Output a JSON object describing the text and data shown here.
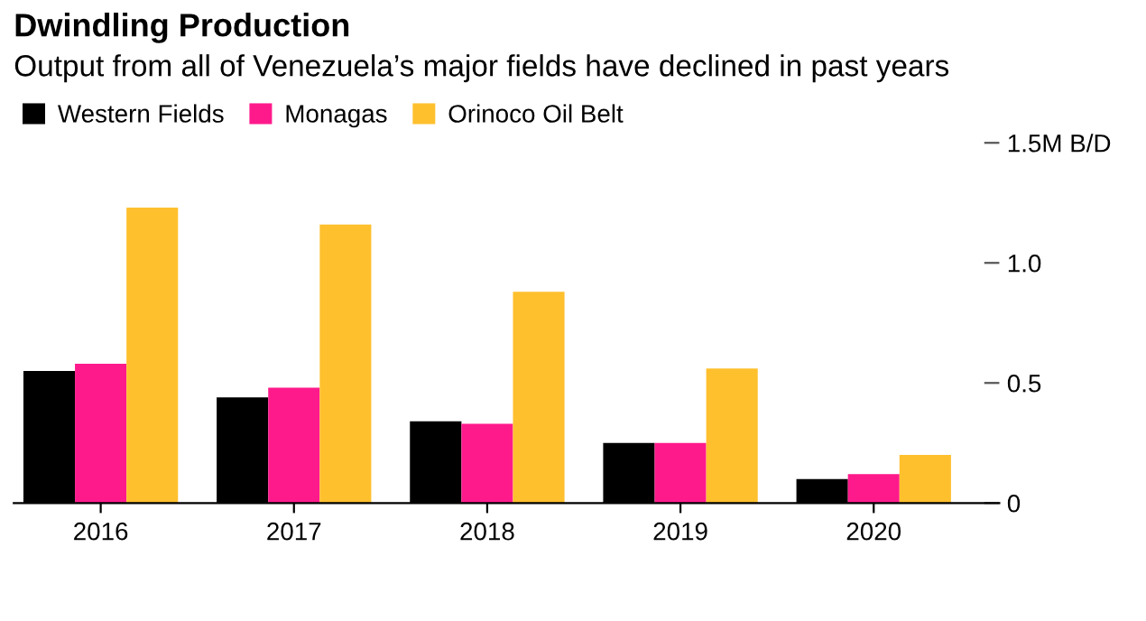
{
  "chart_data": {
    "type": "bar",
    "title": "Dwindling Production",
    "subtitle": "Output from all of Venezuela’s major fields have declined in past years",
    "categories": [
      "2016",
      "2017",
      "2018",
      "2019",
      "2020"
    ],
    "series": [
      {
        "name": "Western Fields",
        "color": "#000000",
        "values": [
          0.55,
          0.44,
          0.34,
          0.25,
          0.1
        ]
      },
      {
        "name": "Monagas",
        "color": "#ff1a8c",
        "values": [
          0.58,
          0.48,
          0.33,
          0.25,
          0.12
        ]
      },
      {
        "name": "Orinoco Oil Belt",
        "color": "#ffc02e",
        "values": [
          1.23,
          1.16,
          0.88,
          0.56,
          0.2
        ]
      }
    ],
    "ylim": [
      0,
      1.5
    ],
    "yticks": [
      0,
      0.5,
      {
        "value": 1.0,
        "label": "1.0"
      },
      {
        "value": 1.5,
        "label": "1.5M B/D"
      }
    ],
    "grid": false,
    "legend": "top left"
  }
}
